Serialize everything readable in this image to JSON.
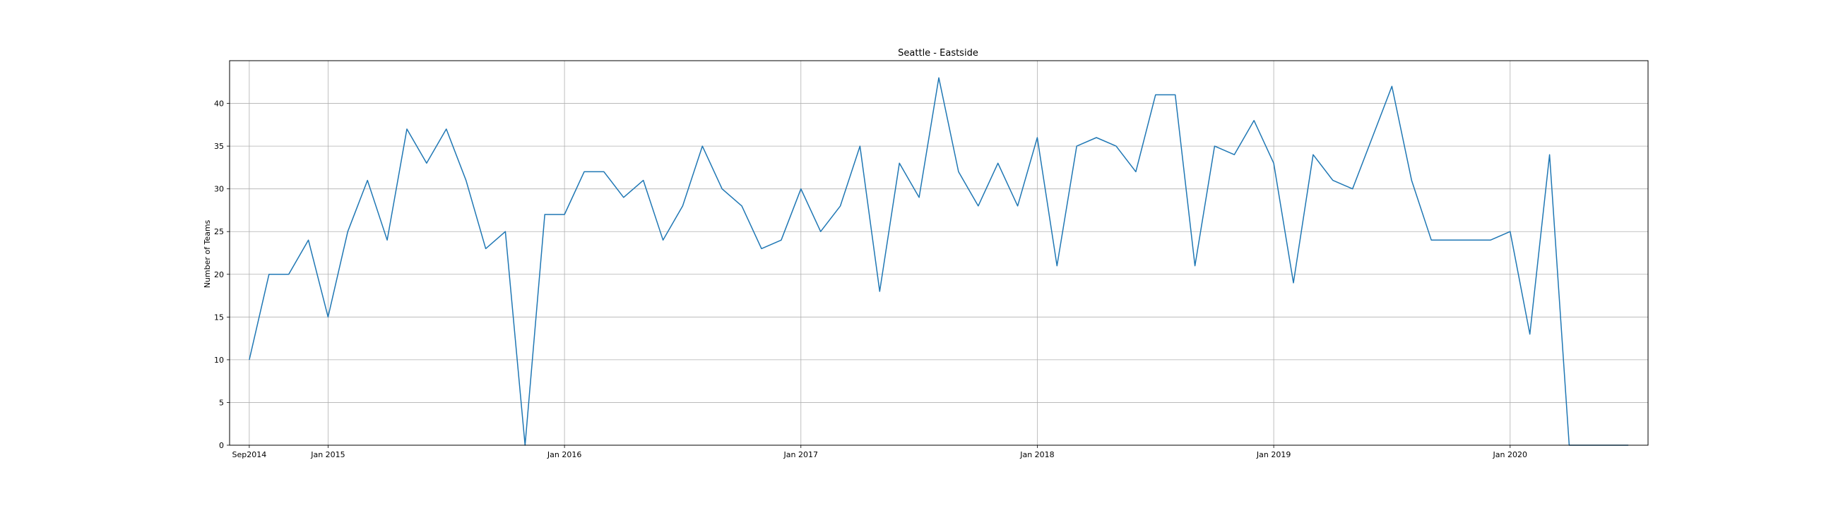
{
  "chart_data": {
    "type": "line",
    "title": "Seattle - Eastside",
    "xlabel": "",
    "ylabel": "Number of Teams",
    "grid": true,
    "line_color": "#1f77b4",
    "x_tick_labels": [
      "Sep2014",
      "Jan 2015",
      "Jan 2016",
      "Jan 2017",
      "Jan 2018",
      "Jan 2019",
      "Jan 2020"
    ],
    "x_tick_dates": [
      "2014-09",
      "2015-01",
      "2016-01",
      "2017-01",
      "2018-01",
      "2019-01",
      "2020-01"
    ],
    "xlim": [
      "2014-08",
      "2020-08"
    ],
    "y_ticks": [
      0,
      5,
      10,
      15,
      20,
      25,
      30,
      35,
      40
    ],
    "ylim": [
      0,
      45
    ],
    "series": [
      {
        "x": [
          "2014-09",
          "2014-10",
          "2014-11",
          "2014-12",
          "2015-01",
          "2015-02",
          "2015-03",
          "2015-04",
          "2015-05",
          "2015-06",
          "2015-07",
          "2015-08",
          "2015-09",
          "2015-10",
          "2015-11",
          "2015-12",
          "2016-01",
          "2016-02",
          "2016-03",
          "2016-04",
          "2016-05",
          "2016-06",
          "2016-07",
          "2016-08",
          "2016-09",
          "2016-10",
          "2016-11",
          "2016-12",
          "2017-01",
          "2017-02",
          "2017-03",
          "2017-04",
          "2017-05",
          "2017-06",
          "2017-07",
          "2017-08",
          "2017-09",
          "2017-10",
          "2017-11",
          "2017-12",
          "2018-01",
          "2018-02",
          "2018-03",
          "2018-04",
          "2018-05",
          "2018-06",
          "2018-07",
          "2018-08",
          "2018-09",
          "2018-10",
          "2018-11",
          "2018-12",
          "2019-01",
          "2019-02",
          "2019-03",
          "2019-04",
          "2019-05",
          "2019-06",
          "2019-07",
          "2019-08",
          "2019-09",
          "2019-10",
          "2019-11",
          "2019-12",
          "2020-01",
          "2020-02",
          "2020-03",
          "2020-04",
          "2020-05",
          "2020-06",
          "2020-07"
        ],
        "values": [
          10,
          20,
          20,
          24,
          15,
          25,
          31,
          24,
          37,
          33,
          37,
          31,
          23,
          25,
          0,
          27,
          27,
          32,
          32,
          29,
          31,
          24,
          28,
          35,
          30,
          28,
          23,
          24,
          30,
          25,
          28,
          35,
          18,
          33,
          29,
          43,
          32,
          28,
          33,
          28,
          36,
          21,
          35,
          36,
          35,
          32,
          41,
          41,
          21,
          35,
          34,
          38,
          33,
          19,
          34,
          31,
          30,
          36,
          42,
          31,
          24,
          24,
          24,
          24,
          25,
          13,
          34,
          0,
          0,
          0,
          0
        ]
      }
    ]
  }
}
